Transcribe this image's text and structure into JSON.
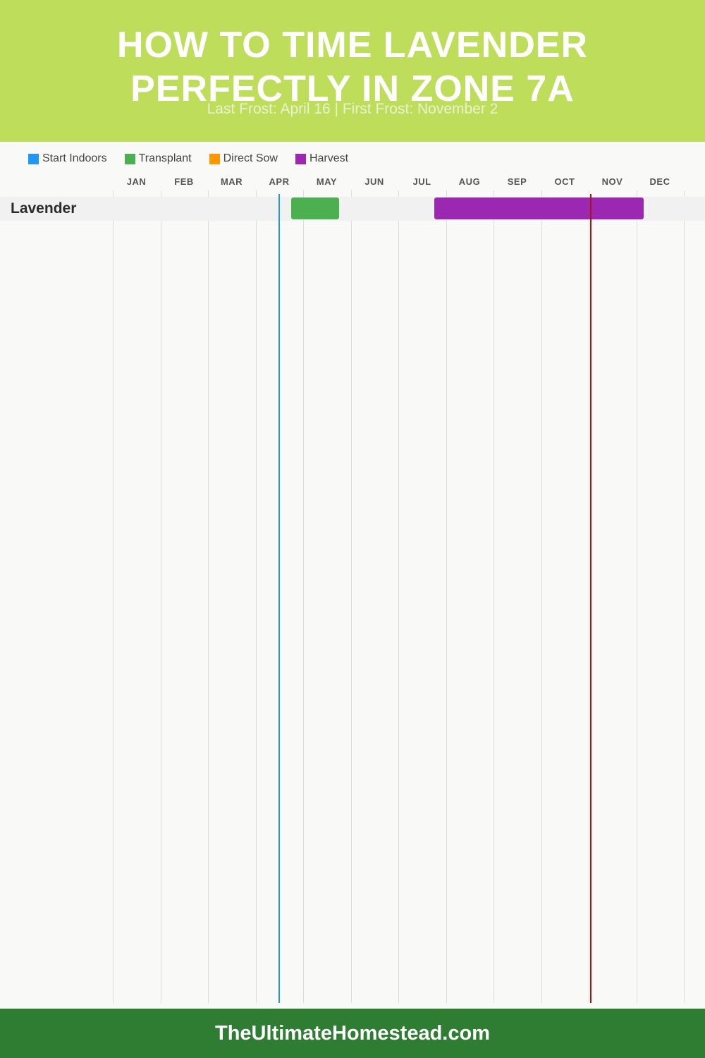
{
  "header": {
    "title_line1": "HOW TO TIME LAVENDER",
    "title_line2": "PERFECTLY IN ZONE 7A",
    "subtitle": "Last Frost: April 16 | First Frost: November 2"
  },
  "legend": [
    {
      "label": "Start Indoors",
      "color": "#2196f3"
    },
    {
      "label": "Transplant",
      "color": "#4caf50"
    },
    {
      "label": "Direct Sow",
      "color": "#ff9800"
    },
    {
      "label": "Harvest",
      "color": "#9c27b0"
    }
  ],
  "footer": {
    "text": "TheUltimateHomestead.com"
  },
  "chart_data": {
    "type": "gantt",
    "months": [
      "JAN",
      "FEB",
      "MAR",
      "APR",
      "MAY",
      "JUN",
      "JUL",
      "AUG",
      "SEP",
      "OCT",
      "NOV",
      "DEC"
    ],
    "rows": [
      {
        "name": "Lavender",
        "tasks": [
          {
            "type": "Transplant",
            "start": 4.75,
            "end": 5.75,
            "color": "#4caf50"
          },
          {
            "type": "Harvest",
            "start": 7.75,
            "end": 12.15,
            "color": "#9c27b0"
          }
        ]
      }
    ],
    "markers": [
      {
        "name": "Last Frost",
        "date": "April 16",
        "month_value": 4.5,
        "color": "#2196f3"
      },
      {
        "name": "First Frost",
        "date": "November 2",
        "month_value": 11.05,
        "color": "#a31616"
      }
    ]
  }
}
